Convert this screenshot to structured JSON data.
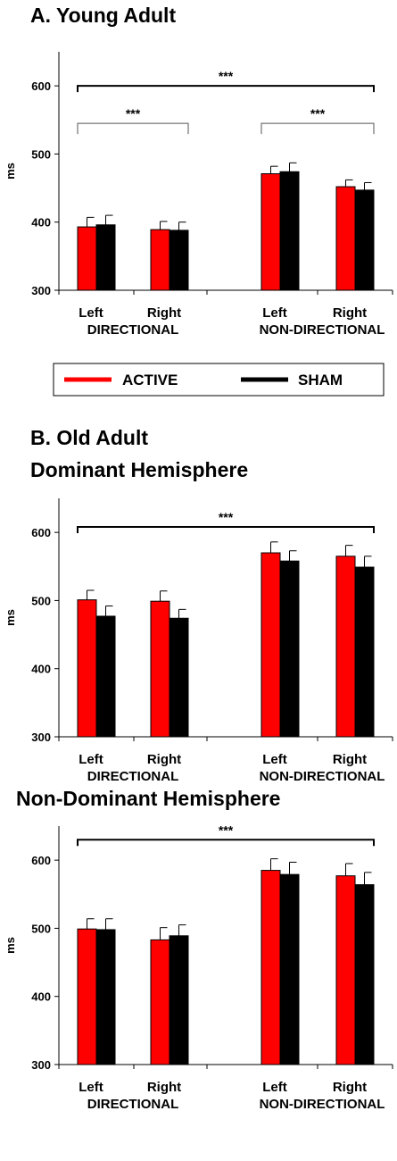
{
  "legend": [
    {
      "label": "ACTIVE",
      "color": "#ff0000"
    },
    {
      "label": "SHAM",
      "color": "#000000"
    }
  ],
  "colors": {
    "active": "#ff0000",
    "sham": "#000000",
    "axis": "#000000"
  },
  "chart_data": [
    {
      "type": "bar",
      "title": "A. Young Adult",
      "title2": "",
      "ylabel": "ms",
      "ylim": [
        300,
        650
      ],
      "yticks": [
        300,
        400,
        500,
        600
      ],
      "categories": [
        "Left",
        "Right",
        "Left",
        "Right"
      ],
      "groups": [
        "DIRECTIONAL",
        "NON-DIRECTIONAL"
      ],
      "series": [
        {
          "name": "ACTIVE",
          "values": [
            393,
            389,
            471,
            452
          ],
          "errors": [
            14,
            12,
            11,
            10
          ]
        },
        {
          "name": "SHAM",
          "values": [
            396,
            388,
            474,
            447
          ],
          "errors": [
            14,
            12,
            13,
            11
          ]
        }
      ],
      "annotations": [
        {
          "label": "***",
          "from": 0,
          "to": 3,
          "level": 600,
          "heavy": true
        },
        {
          "label": "***",
          "from": 0,
          "to": 1,
          "level": 545,
          "heavy": false
        },
        {
          "label": "***",
          "from": 2,
          "to": 3,
          "level": 545,
          "heavy": false
        }
      ]
    },
    {
      "type": "bar",
      "title": "B. Old Adult",
      "title2": "Dominant Hemisphere",
      "ylabel": "ms",
      "ylim": [
        300,
        650
      ],
      "yticks": [
        300,
        400,
        500,
        600
      ],
      "categories": [
        "Left",
        "Right",
        "Left",
        "Right"
      ],
      "groups": [
        "DIRECTIONAL",
        "NON-DIRECTIONAL"
      ],
      "series": [
        {
          "name": "ACTIVE",
          "values": [
            501,
            499,
            570,
            565
          ],
          "errors": [
            14,
            15,
            16,
            16
          ]
        },
        {
          "name": "SHAM",
          "values": [
            477,
            474,
            558,
            549
          ],
          "errors": [
            15,
            13,
            15,
            16
          ]
        }
      ],
      "annotations": [
        {
          "label": "***",
          "from": 0,
          "to": 3,
          "level": 608,
          "heavy": true
        }
      ]
    },
    {
      "type": "bar",
      "title": "Non-Dominant Hemisphere",
      "title2": "",
      "ylabel": "ms",
      "ylim": [
        300,
        650
      ],
      "yticks": [
        300,
        400,
        500,
        600
      ],
      "categories": [
        "Left",
        "Right",
        "Left",
        "Right"
      ],
      "groups": [
        "DIRECTIONAL",
        "NON-DIRECTIONAL"
      ],
      "series": [
        {
          "name": "ACTIVE",
          "values": [
            499,
            483,
            585,
            577
          ],
          "errors": [
            15,
            18,
            17,
            18
          ]
        },
        {
          "name": "SHAM",
          "values": [
            498,
            489,
            579,
            564
          ],
          "errors": [
            16,
            16,
            18,
            18
          ]
        }
      ],
      "annotations": [
        {
          "label": "***",
          "from": 0,
          "to": 3,
          "level": 630,
          "heavy": true
        }
      ]
    }
  ]
}
